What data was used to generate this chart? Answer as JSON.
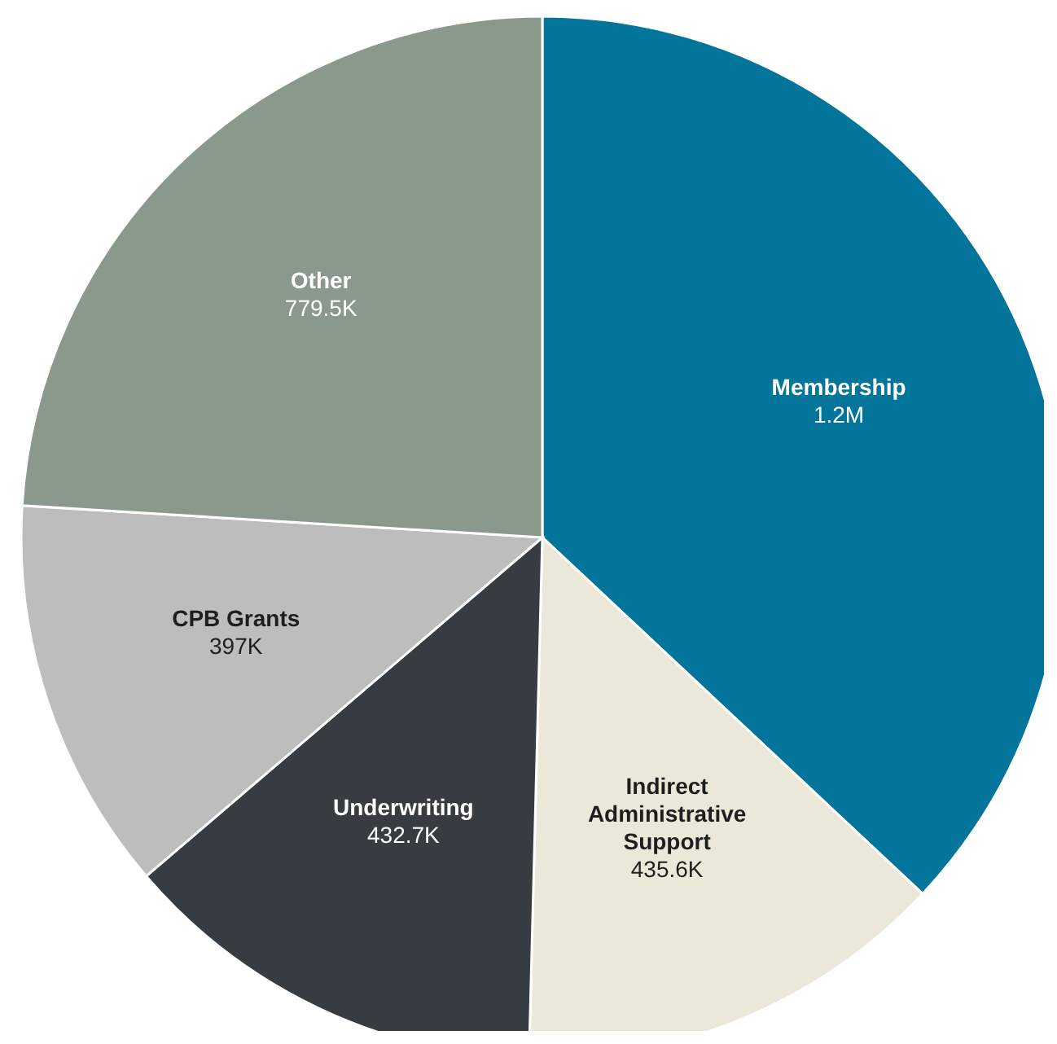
{
  "chart_data": {
    "type": "pie",
    "categories": [
      "Membership",
      "Indirect Administrative Support",
      "Underwriting",
      "CPB Grants",
      "Other"
    ],
    "values": [
      1200000,
      435600,
      432700,
      397000,
      779500
    ],
    "value_labels": [
      "1.2M",
      "435.6K",
      "432.7K",
      "397K",
      "779.5K"
    ],
    "colors": [
      "#03759a",
      "#ebe8d9",
      "#373b42",
      "#bdbdbd",
      "#8b998c"
    ]
  }
}
